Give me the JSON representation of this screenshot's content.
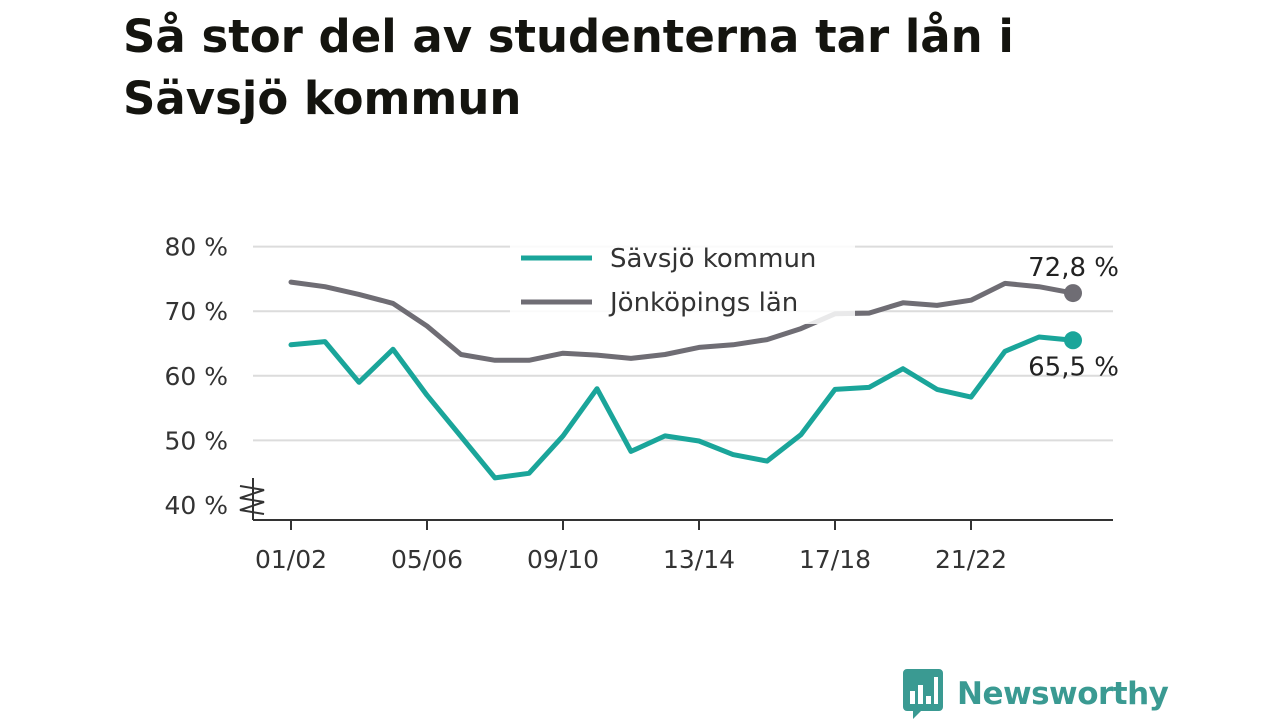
{
  "title": "Så stor del av studenterna tar lån i Sävsjö kommun",
  "brand": {
    "name": "Newsworthy",
    "logo_icon": "bar-chart-speech-bubble-icon",
    "color": "#3a9a92"
  },
  "chart_data": {
    "type": "line",
    "x": [
      "01/02",
      "02/03",
      "03/04",
      "04/05",
      "05/06",
      "06/07",
      "07/08",
      "08/09",
      "09/10",
      "10/11",
      "11/12",
      "12/13",
      "13/14",
      "14/15",
      "15/16",
      "16/17",
      "17/18",
      "18/19",
      "19/20",
      "20/21",
      "21/22",
      "22/23",
      "23/24",
      "24/25"
    ],
    "x_tick_labels": [
      "01/02",
      "05/06",
      "09/10",
      "13/14",
      "17/18",
      "21/22"
    ],
    "y_tick_labels": [
      "40 %",
      "50 %",
      "60 %",
      "70 %",
      "80 %"
    ],
    "y_ticks": [
      40,
      50,
      60,
      70,
      80
    ],
    "ylim": [
      40,
      80
    ],
    "y_axis_break": true,
    "grid": true,
    "legend_position": "top-center",
    "series": [
      {
        "name": "Sävsjö kommun",
        "color": "#1aa59a",
        "values": [
          64.8,
          65.3,
          59.0,
          64.1,
          57.0,
          50.6,
          44.2,
          44.9,
          50.7,
          58.0,
          48.3,
          50.7,
          49.9,
          47.8,
          46.8,
          50.9,
          57.9,
          58.2,
          61.1,
          57.9,
          56.7,
          63.8,
          66.0,
          65.5
        ],
        "end_label": "65,5 %"
      },
      {
        "name": "Jönköpings län",
        "color": "#6f6d74",
        "values": [
          74.5,
          73.8,
          72.6,
          71.2,
          67.7,
          63.3,
          62.4,
          62.4,
          63.5,
          63.2,
          62.7,
          63.3,
          64.4,
          64.8,
          65.6,
          67.3,
          69.6,
          69.7,
          71.3,
          70.9,
          71.7,
          74.3,
          73.8,
          72.8
        ],
        "end_label": "72,8 %"
      }
    ]
  }
}
